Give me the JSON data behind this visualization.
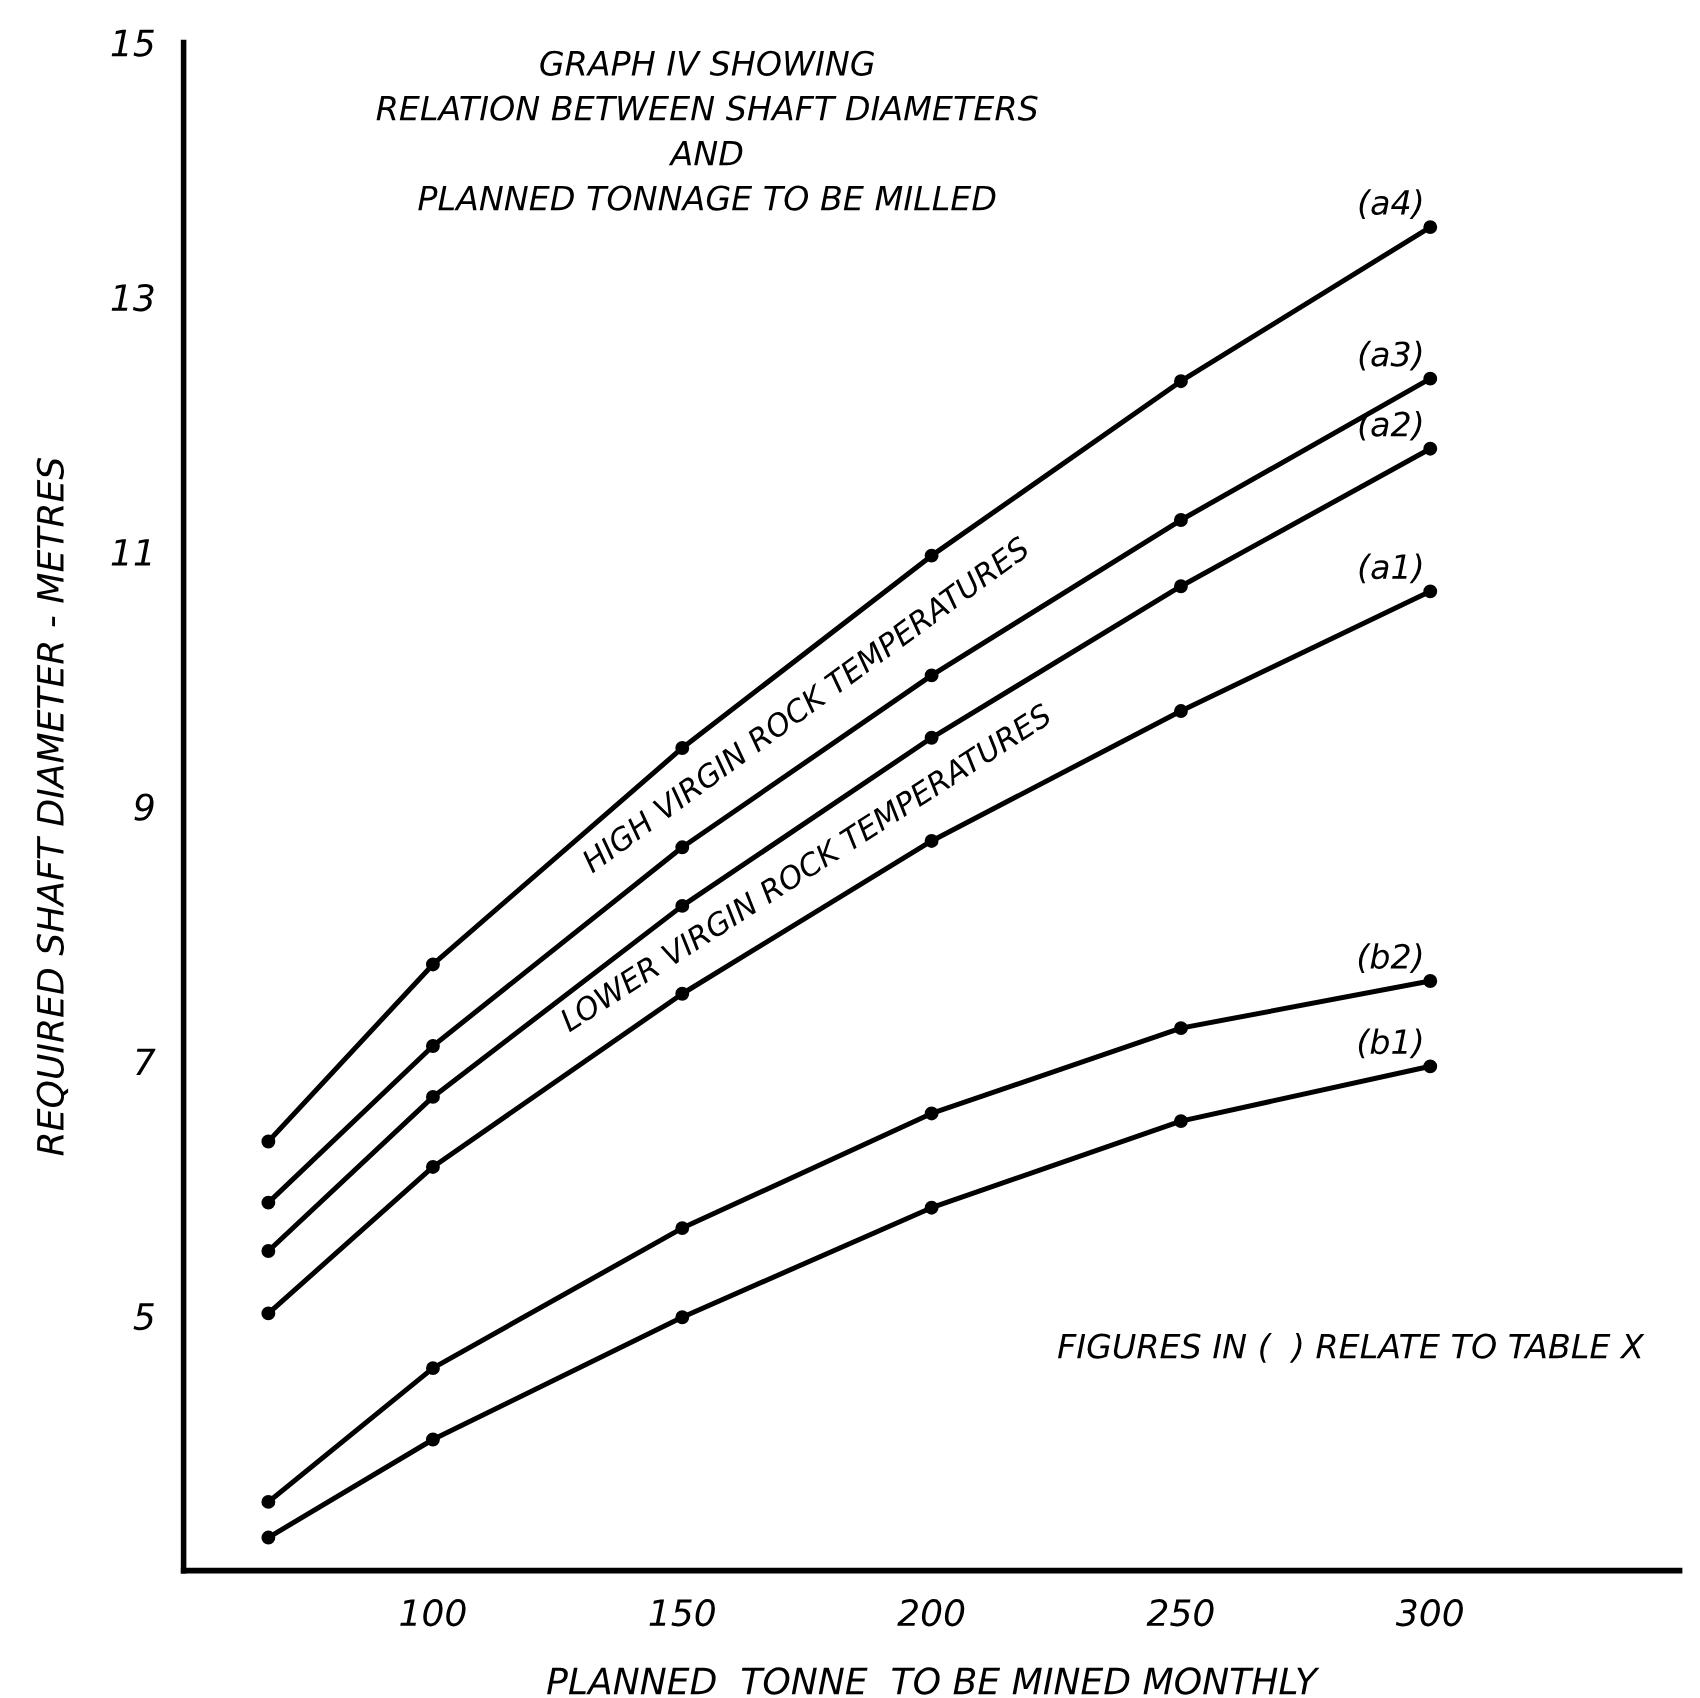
{
  "chart_data": {
    "type": "line",
    "title": "GRAPH IV SHOWING\nRELATION BETWEEN SHAFT DIAMETERS\nAND\nPLANNED TONNAGE TO BE MILLED",
    "xlabel": "PLANNED  TONNE  TO BE MINED MONTHLY",
    "ylabel": "REQUIRED SHAFT DIAMETER - METRES",
    "x": [
      67,
      100,
      150,
      200,
      250,
      300
    ],
    "series": [
      {
        "name": "(a4)",
        "color": "#000000",
        "values": [
          6.37,
          7.76,
          9.46,
          10.97,
          12.34,
          13.55
        ]
      },
      {
        "name": "(a3)",
        "color": "#000000",
        "values": [
          5.89,
          7.12,
          8.68,
          10.03,
          11.25,
          12.36
        ]
      },
      {
        "name": "(a2)",
        "color": "#000000",
        "values": [
          5.51,
          6.72,
          8.22,
          9.54,
          10.73,
          11.81
        ]
      },
      {
        "name": "(a1)",
        "color": "#000000",
        "values": [
          5.02,
          6.17,
          7.53,
          8.73,
          9.75,
          10.69
        ]
      },
      {
        "name": "(b2)",
        "color": "#000000",
        "values": [
          3.54,
          4.59,
          5.69,
          6.59,
          7.26,
          7.63
        ]
      },
      {
        "name": "(b1)",
        "color": "#000000",
        "values": [
          3.26,
          4.03,
          4.99,
          5.85,
          6.53,
          6.96
        ]
      }
    ],
    "annotations": [
      "HIGH VIRGIN ROCK TEMPERATURES",
      "LOWER VIRGIN ROCK TEMPERATURES",
      "FIGURES IN (  ) RELATE TO TABLE X"
    ],
    "xlim": [
      50,
      350
    ],
    "xticks": [
      100,
      150,
      200,
      250,
      300
    ],
    "ylim": [
      3,
      15
    ],
    "yticks": [
      5,
      7,
      9,
      11,
      13,
      15
    ],
    "grid": false,
    "legend": false,
    "marker": "circle",
    "line_style": "solid"
  }
}
